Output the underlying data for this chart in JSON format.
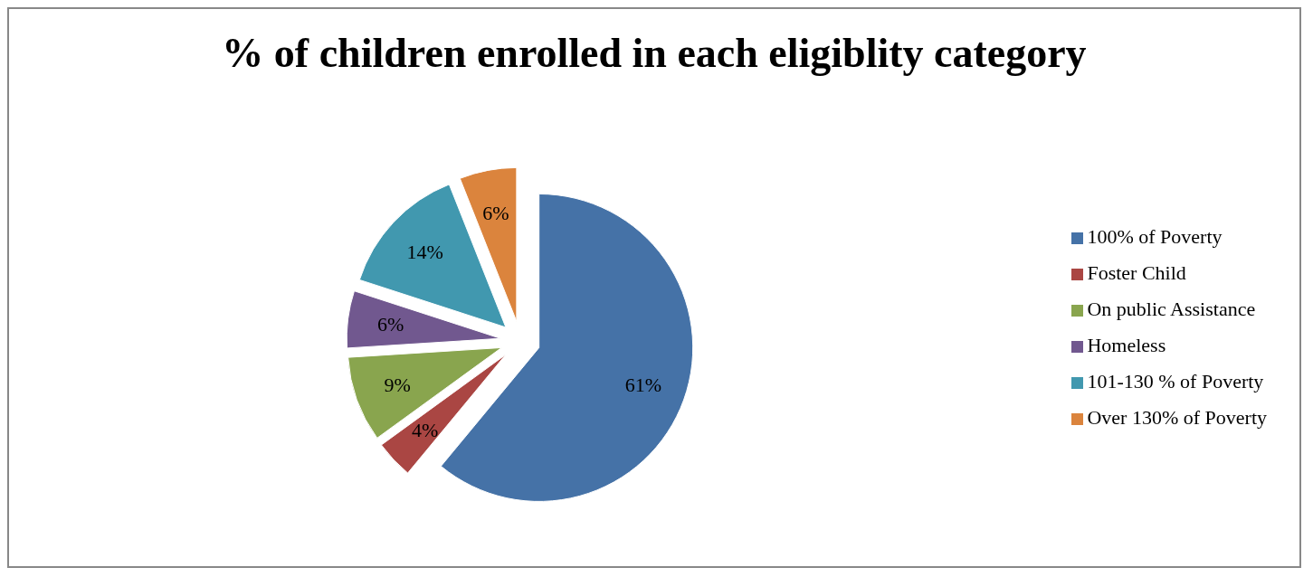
{
  "chart_data": {
    "type": "pie",
    "title": "% of children enrolled in each eligiblity category",
    "categories": [
      "100% of Poverty",
      "Foster Child",
      "On public Assistance",
      "Homeless",
      "101-130 % of Poverty",
      "Over 130% of Poverty"
    ],
    "values": [
      61,
      4,
      9,
      6,
      14,
      6
    ],
    "colors": [
      "#4572a7",
      "#aa4643",
      "#89a54e",
      "#71588f",
      "#4198af",
      "#db843d"
    ],
    "value_labels": [
      "61%",
      "4%",
      "9%",
      "6%",
      "14%",
      "6%"
    ],
    "legend": "right"
  }
}
